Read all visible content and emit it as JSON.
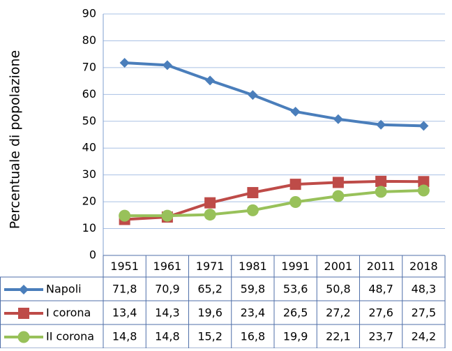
{
  "chart_data": {
    "type": "line",
    "y_label": "Percentuale di popolazione",
    "categories": [
      "1951",
      "1961",
      "1971",
      "1981",
      "1991",
      "2001",
      "2011",
      "2018"
    ],
    "series": [
      {
        "name": "Napoli",
        "color": "#4a7ebb",
        "marker": "diamond",
        "values": [
          71.8,
          70.9,
          65.2,
          59.8,
          53.6,
          50.8,
          48.7,
          48.3
        ],
        "value_labels": [
          "71,8",
          "70,9",
          "65,2",
          "59,8",
          "53,6",
          "50,8",
          "48,7",
          "48,3"
        ]
      },
      {
        "name": "I corona",
        "color": "#be4b48",
        "marker": "square",
        "values": [
          13.4,
          14.3,
          19.6,
          23.4,
          26.5,
          27.2,
          27.6,
          27.5
        ],
        "value_labels": [
          "13,4",
          "14,3",
          "19,6",
          "23,4",
          "26,5",
          "27,2",
          "27,6",
          "27,5"
        ]
      },
      {
        "name": "II corona",
        "color": "#98c15a",
        "marker": "circle",
        "values": [
          14.8,
          14.8,
          15.2,
          16.8,
          19.9,
          22.1,
          23.7,
          24.2
        ],
        "value_labels": [
          "14,8",
          "14,8",
          "15,2",
          "16,8",
          "19,9",
          "22,1",
          "23,7",
          "24,2"
        ]
      }
    ],
    "ylim": [
      0,
      90
    ],
    "yticks": [
      0,
      10,
      20,
      30,
      40,
      50,
      60,
      70,
      80,
      90
    ],
    "grid": true
  }
}
